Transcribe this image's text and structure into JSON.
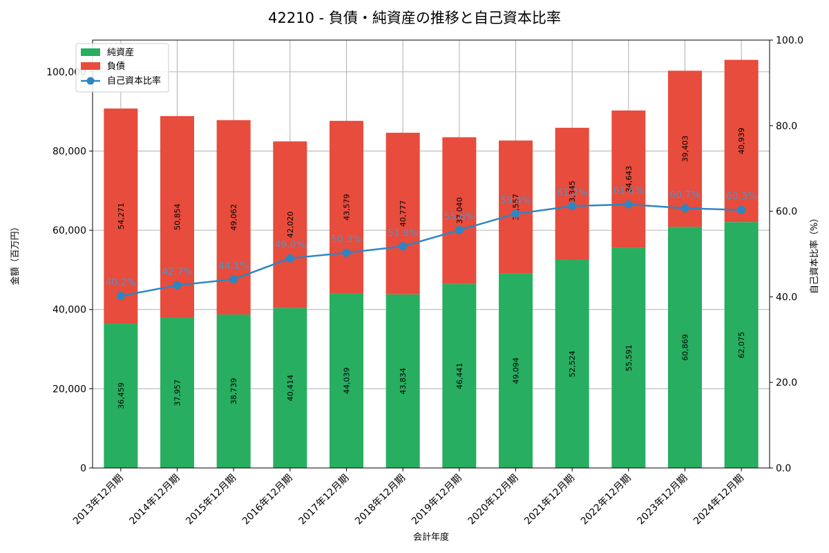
{
  "chart_data": {
    "type": "bar",
    "title": "42210 - 負債・純資産の推移と自己資本比率",
    "xlabel": "会計年度",
    "ylabel": "金額（百万円）",
    "y2label": "自己資本比率（%）",
    "ylim": [
      0,
      108000
    ],
    "y2lim": [
      0,
      100
    ],
    "yticks": [
      "0",
      "20,000",
      "40,000",
      "60,000",
      "80,000",
      "100,000"
    ],
    "y2ticks": [
      "0.0",
      "20.0",
      "40.0",
      "60.0",
      "80.0",
      "100.0"
    ],
    "grid": true,
    "legend_position": "top-left",
    "categories": [
      "2013年12月期",
      "2014年12月期",
      "2015年12月期",
      "2016年12月期",
      "2017年12月期",
      "2018年12月期",
      "2019年12月期",
      "2020年12月期",
      "2021年12月期",
      "2022年12月期",
      "2023年12月期",
      "2024年12月期"
    ],
    "series": [
      {
        "name": "純資産",
        "kind": "bar",
        "color": "#27ae60",
        "values": [
          36459,
          37957,
          38739,
          40414,
          44039,
          43834,
          46441,
          49094,
          52524,
          55591,
          60869,
          62075
        ],
        "labels": [
          "36,459",
          "37,957",
          "38,739",
          "40,414",
          "44,039",
          "43,834",
          "46,441",
          "49,094",
          "52,524",
          "55,591",
          "60,869",
          "62,075"
        ]
      },
      {
        "name": "負債",
        "kind": "bar",
        "color": "#e74c3c",
        "values": [
          54271,
          50854,
          49062,
          42020,
          43579,
          40777,
          37040,
          33557,
          33345,
          34643,
          39403,
          40939
        ],
        "labels": [
          "54,271",
          "50,854",
          "49,062",
          "42,020",
          "43,579",
          "40,777",
          "37,040",
          "33,557",
          "33,345",
          "34,643",
          "39,403",
          "40,939"
        ]
      },
      {
        "name": "自己資本比率",
        "kind": "line",
        "axis": "right",
        "color": "#2e86c1",
        "values": [
          40.2,
          42.7,
          44.1,
          49.0,
          50.3,
          51.8,
          55.6,
          59.4,
          61.2,
          61.6,
          60.7,
          60.3
        ],
        "labels": [
          "40.2%",
          "42.7%",
          "44.1%",
          "49.0%",
          "50.3%",
          "51.8%",
          "55.6%",
          "59.4%",
          "61.2%",
          "61.6%",
          "60.7%",
          "60.3%"
        ]
      }
    ]
  }
}
